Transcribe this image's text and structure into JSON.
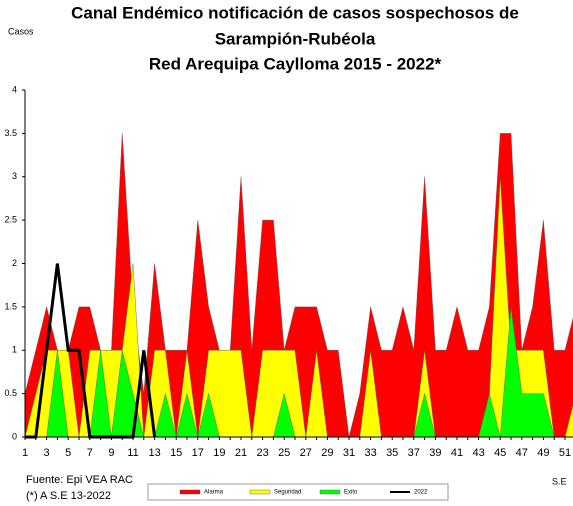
{
  "chart_data": {
    "type": "area",
    "title": [
      "Canal Endémico notificación de casos sospechosos de",
      "Sarampión-Rubéola",
      "Red Arequipa Caylloma 2015 - 2022*"
    ],
    "ylabel": "Casos",
    "xlabel": "S.E",
    "notes": [
      "Fuente: Epi VEA RAC",
      "(*) A S.E 13-2022"
    ],
    "categories": [
      1,
      null,
      3,
      null,
      5,
      null,
      7,
      null,
      9,
      null,
      11,
      null,
      13,
      null,
      15,
      null,
      17,
      null,
      19,
      null,
      21,
      null,
      23,
      null,
      25,
      null,
      27,
      null,
      29,
      null,
      31,
      null,
      33,
      null,
      35,
      null,
      37,
      null,
      39,
      null,
      41,
      null,
      43,
      null,
      45,
      null,
      47,
      null,
      49,
      null,
      51,
      null
    ],
    "ylim": [
      0,
      4
    ],
    "yticks": [
      0,
      0.5,
      1,
      1.5,
      2,
      2.5,
      3,
      3.5,
      4
    ],
    "series": [
      {
        "name": "Alarma",
        "color": "#ff0000",
        "values": [
          0.5,
          1,
          1.5,
          1,
          1,
          1.5,
          1.5,
          1,
          1,
          3.5,
          1.5,
          0.5,
          2,
          1,
          1,
          1,
          2.5,
          1.5,
          1,
          1,
          3,
          1,
          2.5,
          2.5,
          1,
          1.5,
          1.5,
          1.5,
          1,
          1,
          0,
          0.5,
          1.5,
          1,
          1,
          1.5,
          1,
          3,
          1,
          1,
          1.5,
          1,
          1,
          1.5,
          3.5,
          3.5,
          1,
          1.5,
          2.5,
          1,
          1,
          1.5
        ]
      },
      {
        "name": "Seguridad",
        "color": "#ffff00",
        "values": [
          0,
          0.5,
          1,
          1,
          1,
          0,
          1,
          1,
          1,
          1,
          2,
          0,
          1,
          1,
          0,
          1,
          0,
          1,
          1,
          1,
          1,
          0,
          1,
          1,
          1,
          1,
          0,
          1,
          0,
          0,
          0,
          0,
          1,
          0,
          0,
          0,
          0,
          1,
          0,
          0,
          0,
          0,
          0,
          0.5,
          3,
          1,
          1,
          1,
          1,
          0,
          0,
          0.5
        ]
      },
      {
        "name": "Exito",
        "color": "#00ff00",
        "values": [
          0,
          0,
          0,
          1,
          0,
          0,
          0,
          1,
          0,
          1,
          0.5,
          0,
          0,
          0.5,
          0,
          0.5,
          0,
          0.5,
          0,
          0,
          0,
          0,
          0,
          0,
          0.5,
          0,
          0,
          0,
          0,
          0,
          0,
          0,
          0,
          0,
          0,
          0,
          0,
          0.5,
          0,
          0,
          0,
          0,
          0,
          0.5,
          0,
          1.5,
          0.5,
          0.5,
          0.5,
          0,
          0,
          0
        ]
      },
      {
        "name": "2022",
        "color": "#000000",
        "line": true,
        "values": [
          0,
          0,
          1,
          2,
          1,
          1,
          0,
          0,
          0,
          0,
          0,
          1,
          0,
          null,
          null,
          null,
          null,
          null,
          null,
          null,
          null,
          null,
          null,
          null,
          null,
          null,
          null,
          null,
          null,
          null,
          null,
          null,
          null,
          null,
          null,
          null,
          null,
          null,
          null,
          null,
          null,
          null,
          null,
          null,
          null,
          null,
          null,
          null,
          null,
          null,
          null,
          null
        ]
      }
    ]
  }
}
